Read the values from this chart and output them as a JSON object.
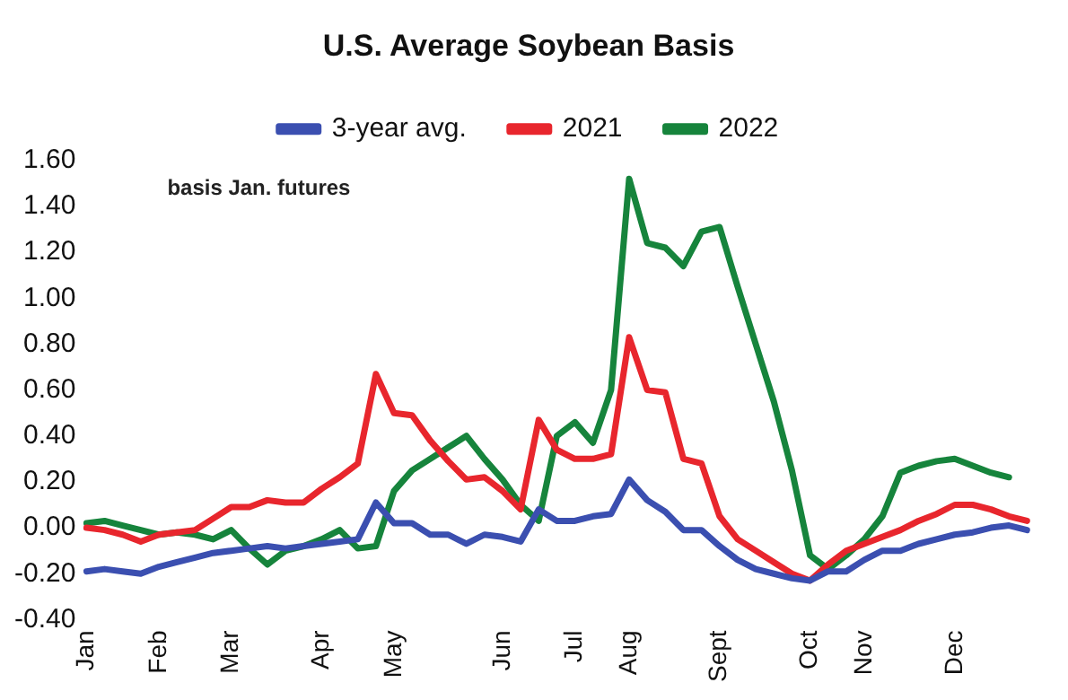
{
  "chart_data": {
    "type": "line",
    "title": "U.S. Average Soybean Basis",
    "annotations": [
      "basis Jan. futures"
    ],
    "categories": [
      "Jan",
      null,
      null,
      null,
      "Feb",
      null,
      null,
      null,
      "Mar",
      null,
      null,
      null,
      null,
      "Apr",
      null,
      null,
      null,
      "May",
      null,
      null,
      null,
      null,
      null,
      "Jun",
      null,
      null,
      null,
      "Jul",
      null,
      null,
      "Aug",
      null,
      null,
      null,
      null,
      "Sept",
      null,
      null,
      null,
      null,
      "Oct",
      null,
      null,
      "Nov",
      null,
      null,
      null,
      null,
      "Dec",
      null,
      null,
      null,
      null
    ],
    "series": [
      {
        "name": "3-year avg.",
        "color": "#3b4fb0",
        "values": [
          -0.19,
          -0.18,
          -0.19,
          -0.2,
          -0.17,
          -0.15,
          -0.13,
          -0.11,
          -0.1,
          -0.09,
          -0.08,
          -0.09,
          -0.08,
          -0.07,
          -0.06,
          -0.05,
          0.11,
          0.02,
          0.02,
          -0.03,
          -0.03,
          -0.07,
          -0.03,
          -0.04,
          -0.06,
          0.08,
          0.03,
          0.03,
          0.05,
          0.06,
          0.21,
          0.12,
          0.07,
          -0.01,
          -0.01,
          -0.08,
          -0.14,
          -0.18,
          -0.2,
          -0.22,
          -0.23,
          -0.19,
          -0.19,
          -0.14,
          -0.1,
          -0.1,
          -0.07,
          -0.05,
          -0.03,
          -0.02,
          0.0,
          0.01,
          -0.01
        ]
      },
      {
        "name": "2021",
        "color": "#e8262d",
        "values": [
          0.0,
          -0.01,
          -0.03,
          -0.06,
          -0.03,
          -0.02,
          -0.01,
          0.04,
          0.09,
          0.09,
          0.12,
          0.11,
          0.11,
          0.17,
          0.22,
          0.28,
          0.67,
          0.5,
          0.49,
          0.38,
          0.29,
          0.21,
          0.22,
          0.16,
          0.08,
          0.47,
          0.34,
          0.3,
          0.3,
          0.32,
          0.83,
          0.6,
          0.59,
          0.3,
          0.28,
          0.05,
          -0.05,
          -0.1,
          -0.15,
          -0.2,
          -0.23,
          -0.16,
          -0.1,
          -0.07,
          -0.04,
          -0.01,
          0.03,
          0.06,
          0.1,
          0.1,
          0.08,
          0.05,
          0.03
        ]
      },
      {
        "name": "2022",
        "color": "#16843c",
        "values": [
          0.02,
          0.03,
          0.01,
          -0.01,
          -0.03,
          -0.02,
          -0.03,
          -0.05,
          -0.01,
          -0.09,
          -0.16,
          -0.1,
          -0.08,
          -0.05,
          -0.01,
          -0.09,
          -0.08,
          0.16,
          0.25,
          0.3,
          0.35,
          0.4,
          0.3,
          0.21,
          0.1,
          0.03,
          0.4,
          0.46,
          0.37,
          0.6,
          1.52,
          1.24,
          1.22,
          1.14,
          1.29,
          1.31,
          1.05,
          0.8,
          0.55,
          0.25,
          -0.12,
          -0.18,
          -0.12,
          -0.05,
          0.05,
          0.24,
          0.27,
          0.29,
          0.3,
          0.27,
          0.24,
          0.22,
          null
        ]
      }
    ],
    "ylim": [
      -0.4,
      1.6
    ],
    "yticks": [
      {
        "value": -0.4,
        "label": "-0.40"
      },
      {
        "value": -0.2,
        "label": "-0.20"
      },
      {
        "value": 0,
        "label": "0.00"
      },
      {
        "value": 0.2,
        "label": "0.20"
      },
      {
        "value": 0.4,
        "label": "0.40"
      },
      {
        "value": 0.6,
        "label": "0.60"
      },
      {
        "value": 0.8,
        "label": "0.80"
      },
      {
        "value": 1.0,
        "label": "1.00"
      },
      {
        "value": 1.2,
        "label": "1.20"
      },
      {
        "value": 1.4,
        "label": "1.40"
      },
      {
        "value": 1.6,
        "label": "1.60"
      }
    ],
    "grid": false,
    "legend": "top",
    "marker": "none",
    "line_style": "solid"
  }
}
